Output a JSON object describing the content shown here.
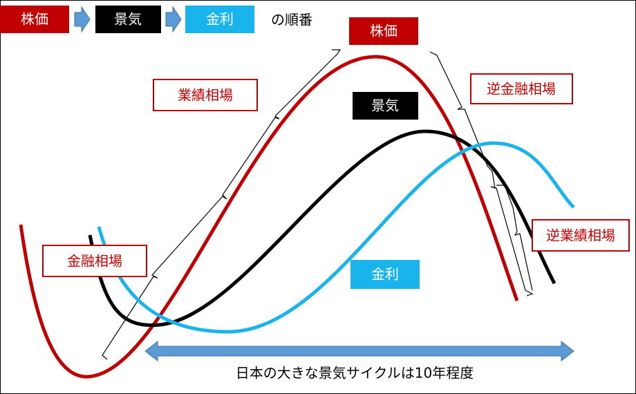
{
  "legend": {
    "items": [
      "株価",
      "景気",
      "金利"
    ],
    "suffix": "の順番"
  },
  "curve_labels": {
    "stock": "株価",
    "economy": "景気",
    "rate": "金利"
  },
  "phases": {
    "earnings": "業績相場",
    "reverse_financial": "逆金融相場",
    "financial": "金融相場",
    "reverse_earnings": "逆業績相場"
  },
  "cycle_note": "日本の大きな景気サイクルは10年程度"
}
